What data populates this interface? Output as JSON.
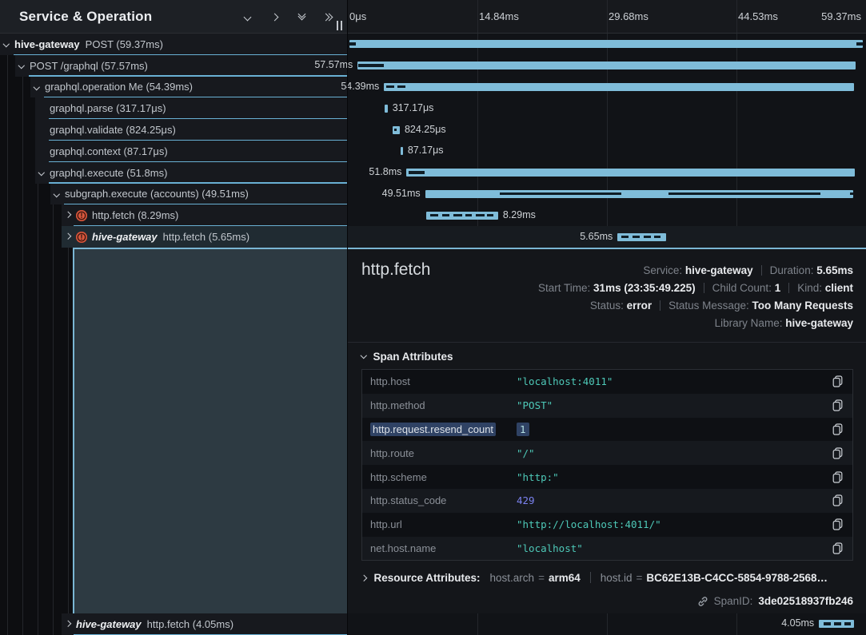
{
  "panel_header": {
    "title": "Service & Operation",
    "icons": [
      "chevron-down-icon",
      "chevron-right-icon",
      "double-chevron-down-icon",
      "double-chevron-right-icon"
    ]
  },
  "timeline_axis": {
    "ticks": [
      "0μs",
      "14.84ms",
      "29.68ms",
      "44.53ms",
      "59.37ms"
    ],
    "total_ms": 59.37
  },
  "colors": {
    "bar": "#7fbcd9",
    "accent": "#7ab6d4",
    "error_icon": "#d9573d",
    "string_value": "#4ec9b8",
    "number_value": "#7b82f0",
    "selection": "#4a6ca5"
  },
  "spans": [
    {
      "service": "hive-gateway",
      "italic": false,
      "label": "POST (59.37ms)",
      "depth": 0,
      "chevron": "down",
      "error": false,
      "start_ms": 0,
      "dur_ms": 59.37,
      "bar_label": "",
      "label_side": "none",
      "segments": [
        [
          0,
          0.75
        ],
        [
          58.65,
          59.37
        ]
      ]
    },
    {
      "service": null,
      "italic": false,
      "label": "POST /graphql (57.57ms)",
      "depth": 1,
      "chevron": "down",
      "error": false,
      "start_ms": 0.95,
      "dur_ms": 57.57,
      "bar_label": "57.57ms",
      "label_side": "left",
      "segments": [
        [
          1.05,
          3.95
        ]
      ]
    },
    {
      "service": null,
      "italic": false,
      "label": "graphql.operation Me (54.39ms)",
      "depth": 2,
      "chevron": "down",
      "error": false,
      "start_ms": 4.0,
      "dur_ms": 54.39,
      "bar_label": "54.39ms",
      "label_side": "left",
      "segments": [
        [
          4.25,
          5.15
        ],
        [
          5.55,
          6.45
        ]
      ]
    },
    {
      "service": null,
      "italic": false,
      "label": "graphql.parse (317.17μs)",
      "depth": 3,
      "chevron": null,
      "error": false,
      "start_ms": 4.1,
      "dur_ms": 0.317,
      "bar_label": "317.17μs",
      "label_side": "right",
      "segments": []
    },
    {
      "service": null,
      "italic": false,
      "label": "graphql.validate (824.25μs)",
      "depth": 3,
      "chevron": null,
      "error": false,
      "start_ms": 5.0,
      "dur_ms": 0.824,
      "bar_label": "824.25μs",
      "label_side": "right",
      "segments": [
        [
          5.15,
          5.45
        ]
      ]
    },
    {
      "service": null,
      "italic": false,
      "label": "graphql.context (87.17μs)",
      "depth": 3,
      "chevron": null,
      "error": false,
      "start_ms": 5.95,
      "dur_ms": 0.087,
      "bar_label": "87.17μs",
      "label_side": "right",
      "segments": []
    },
    {
      "service": null,
      "italic": false,
      "label": "graphql.execute (51.8ms)",
      "depth": 3,
      "chevron": "down",
      "error": false,
      "start_ms": 6.6,
      "dur_ms": 51.8,
      "bar_label": "51.8ms",
      "label_side": "left",
      "segments": [
        [
          6.85,
          8.65
        ]
      ]
    },
    {
      "service": null,
      "italic": false,
      "label": "subgraph.execute (accounts) (49.51ms)",
      "depth": 4,
      "chevron": "down",
      "error": false,
      "start_ms": 8.75,
      "dur_ms": 49.51,
      "bar_label": "49.51ms",
      "label_side": "left",
      "segments": [
        [
          17.4,
          31.4
        ],
        [
          36.9,
          54.5
        ],
        [
          57.9,
          58.3
        ]
      ]
    },
    {
      "service": null,
      "italic": false,
      "label": "http.fetch (8.29ms)",
      "depth": 5,
      "chevron": "right",
      "error": true,
      "start_ms": 8.9,
      "dur_ms": 8.29,
      "bar_label": "8.29ms",
      "label_side": "right",
      "segments": [
        [
          9.3,
          10.3
        ],
        [
          10.75,
          11.6
        ],
        [
          12.05,
          13.0
        ],
        [
          13.4,
          14.15
        ],
        [
          14.6,
          15.6
        ],
        [
          15.95,
          16.65
        ]
      ]
    },
    {
      "service": "hive-gateway",
      "italic": true,
      "label": "http.fetch (5.65ms)",
      "depth": 5,
      "chevron": "right",
      "error": true,
      "selected": true,
      "start_ms": 31.0,
      "dur_ms": 5.65,
      "bar_label": "5.65ms",
      "label_side": "left",
      "segments": [
        [
          31.4,
          32.3
        ],
        [
          32.75,
          33.6
        ],
        [
          34.0,
          34.9
        ],
        [
          35.25,
          35.95
        ]
      ]
    },
    {
      "service": "hive-gateway",
      "italic": true,
      "label": "http.fetch (4.05ms)",
      "depth": 5,
      "chevron": "right",
      "error": false,
      "after_detail": true,
      "start_ms": 54.3,
      "dur_ms": 4.05,
      "bar_label": "4.05ms",
      "label_side": "left",
      "segments": [
        [
          54.8,
          55.7
        ],
        [
          56.05,
          56.9
        ],
        [
          57.25,
          58.0
        ]
      ]
    }
  ],
  "detail": {
    "title": "http.fetch",
    "meta": [
      [
        {
          "label": "Service:",
          "value": "hive-gateway"
        },
        {
          "label": "Duration:",
          "value": "5.65ms"
        }
      ],
      [
        {
          "label": "Start Time:",
          "value": "31ms (23:35:49.225)"
        },
        {
          "label": "Child Count:",
          "value": "1"
        },
        {
          "label": "Kind:",
          "value": "client"
        }
      ],
      [
        {
          "label": "Status:",
          "value": "error"
        },
        {
          "label": "Status Message:",
          "value": "Too Many Requests"
        }
      ],
      [
        {
          "label": "Library Name:",
          "value": "hive-gateway"
        }
      ]
    ],
    "span_attributes": {
      "title": "Span Attributes",
      "rows": [
        {
          "key": "http.host",
          "value": "\"localhost:4011\"",
          "type": "string",
          "selected": false
        },
        {
          "key": "http.method",
          "value": "\"POST\"",
          "type": "string",
          "selected": false
        },
        {
          "key": "http.request.resend_count",
          "value": "1",
          "type": "number",
          "selected": true
        },
        {
          "key": "http.route",
          "value": "\"/\"",
          "type": "string",
          "selected": false
        },
        {
          "key": "http.scheme",
          "value": "\"http:\"",
          "type": "string",
          "selected": false
        },
        {
          "key": "http.status_code",
          "value": "429",
          "type": "number",
          "selected": false
        },
        {
          "key": "http.url",
          "value": "\"http://localhost:4011/\"",
          "type": "string",
          "selected": false
        },
        {
          "key": "net.host.name",
          "value": "\"localhost\"",
          "type": "string",
          "selected": false
        }
      ]
    },
    "resource_attributes": {
      "title": "Resource Attributes:",
      "items": [
        {
          "key": "host.arch",
          "value": "arm64"
        },
        {
          "key": "host.id",
          "value": "BC62E13B-C4CC-5854-9788-2568…"
        }
      ]
    },
    "span_id": {
      "label": "SpanID:",
      "value": "3de02518937fb246"
    }
  }
}
